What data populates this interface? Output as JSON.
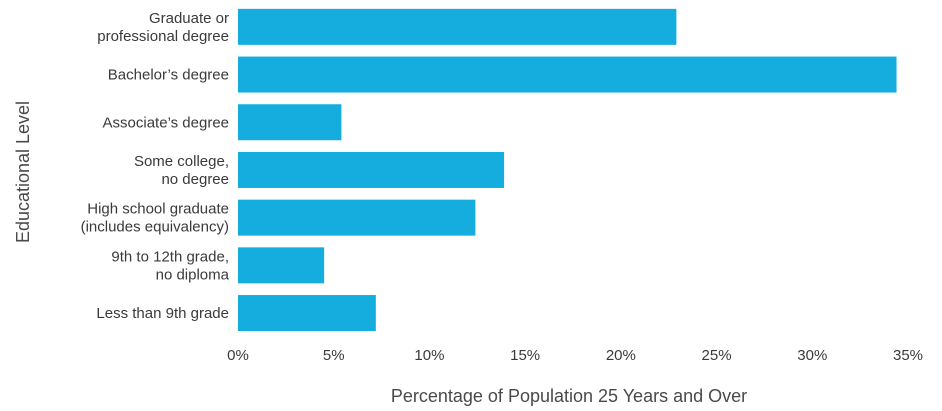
{
  "chart_data": {
    "type": "bar",
    "orientation": "horizontal",
    "categories": [
      [
        "Graduate or",
        "professional degree"
      ],
      [
        "Bachelor’s degree"
      ],
      [
        "Associate’s degree"
      ],
      [
        "Some college,",
        "no degree"
      ],
      [
        "High school graduate",
        "(includes equivalency)"
      ],
      [
        "9th to 12th grade,",
        "no diploma"
      ],
      [
        "Less than 9th grade"
      ]
    ],
    "values": [
      22.9,
      34.4,
      5.4,
      13.9,
      12.4,
      4.5,
      7.2
    ],
    "xlim": [
      0,
      35
    ],
    "xticks": [
      "0%",
      "5%",
      "10%",
      "15%",
      "20%",
      "25%",
      "30%",
      "35%"
    ],
    "xlabel": "Percentage of Population 25 Years and Over",
    "ylabel": "Educational Level",
    "bar_color": "#14ADDE",
    "grid": false
  }
}
